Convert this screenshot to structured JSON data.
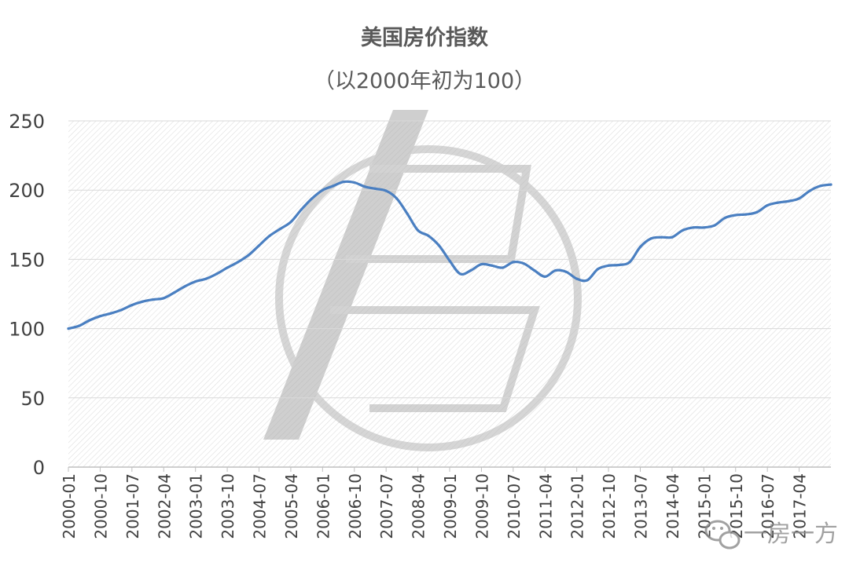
{
  "chart_data": {
    "type": "line",
    "title": "美国房价指数",
    "subtitle": "（以2000年初为100）",
    "xlabel": "",
    "ylabel": "",
    "ylim": [
      0,
      250
    ],
    "y_ticks": [
      0,
      50,
      100,
      150,
      200,
      250
    ],
    "x_ticks": [
      "2000-01",
      "2000-10",
      "2001-07",
      "2002-04",
      "2003-01",
      "2003-10",
      "2004-07",
      "2005-04",
      "2006-01",
      "2006-10",
      "2007-07",
      "2008-04",
      "2009-01",
      "2009-10",
      "2010-07",
      "2011-04",
      "2012-01",
      "2012-10",
      "2013-07",
      "2014-04",
      "2015-01",
      "2015-10",
      "2016-07",
      "2017-04"
    ],
    "grid": true,
    "legend": "none",
    "series": [
      {
        "color": "#4a7fc1",
        "points": [
          [
            "2000-01",
            100
          ],
          [
            "2000-04",
            102
          ],
          [
            "2000-07",
            106
          ],
          [
            "2000-10",
            109
          ],
          [
            "2001-01",
            111
          ],
          [
            "2001-04",
            113.5
          ],
          [
            "2001-07",
            117
          ],
          [
            "2001-10",
            119.5
          ],
          [
            "2002-01",
            121
          ],
          [
            "2002-04",
            122
          ],
          [
            "2002-07",
            126
          ],
          [
            "2002-10",
            130.5
          ],
          [
            "2003-01",
            134
          ],
          [
            "2003-04",
            136
          ],
          [
            "2003-07",
            139.5
          ],
          [
            "2003-10",
            144
          ],
          [
            "2004-01",
            148
          ],
          [
            "2004-04",
            153
          ],
          [
            "2004-07",
            160
          ],
          [
            "2004-10",
            167
          ],
          [
            "2005-01",
            172
          ],
          [
            "2005-04",
            177
          ],
          [
            "2005-07",
            186
          ],
          [
            "2005-10",
            194
          ],
          [
            "2006-01",
            200
          ],
          [
            "2006-04",
            203
          ],
          [
            "2006-07",
            206
          ],
          [
            "2006-10",
            205.5
          ],
          [
            "2007-01",
            202.5
          ],
          [
            "2007-04",
            201
          ],
          [
            "2007-07",
            199.5
          ],
          [
            "2007-10",
            194
          ],
          [
            "2008-01",
            183
          ],
          [
            "2008-04",
            171
          ],
          [
            "2008-07",
            167
          ],
          [
            "2008-10",
            160
          ],
          [
            "2009-01",
            149
          ],
          [
            "2009-04",
            139.5
          ],
          [
            "2009-07",
            142
          ],
          [
            "2009-10",
            146.5
          ],
          [
            "2010-01",
            145.5
          ],
          [
            "2010-04",
            144
          ],
          [
            "2010-07",
            148
          ],
          [
            "2010-10",
            147
          ],
          [
            "2011-01",
            142
          ],
          [
            "2011-04",
            137.5
          ],
          [
            "2011-07",
            142
          ],
          [
            "2011-10",
            141
          ],
          [
            "2012-01",
            136
          ],
          [
            "2012-04",
            135
          ],
          [
            "2012-07",
            143
          ],
          [
            "2012-10",
            145.5
          ],
          [
            "2013-01",
            146
          ],
          [
            "2013-04",
            148
          ],
          [
            "2013-07",
            159
          ],
          [
            "2013-10",
            165
          ],
          [
            "2014-01",
            166
          ],
          [
            "2014-04",
            166
          ],
          [
            "2014-07",
            171
          ],
          [
            "2014-10",
            173
          ],
          [
            "2015-01",
            173
          ],
          [
            "2015-04",
            174.5
          ],
          [
            "2015-07",
            180
          ],
          [
            "2015-10",
            182
          ],
          [
            "2016-01",
            182.5
          ],
          [
            "2016-04",
            184
          ],
          [
            "2016-07",
            189
          ],
          [
            "2016-10",
            191
          ],
          [
            "2017-01",
            192
          ],
          [
            "2017-04",
            194
          ],
          [
            "2017-07",
            199.5
          ],
          [
            "2017-10",
            203
          ],
          [
            "2018-01",
            204
          ]
        ]
      }
    ]
  },
  "watermark": {
    "text": "一房一方",
    "icon": "wechat-icon"
  }
}
